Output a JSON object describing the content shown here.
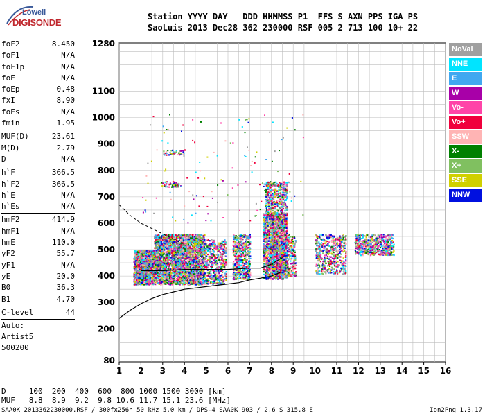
{
  "logo": {
    "line1": "Lowell",
    "line2": "DIGISONDE"
  },
  "header": {
    "row1": "Station YYYY DAY   DDD HHMMSS P1  FFS S AXN PPS IGA PS",
    "row2": "SaoLuis 2013 Dec28 362 230000 RSF 005 2 713 100 10+ 22"
  },
  "params": {
    "g1": [
      {
        "k": "foF2",
        "v": "8.450"
      },
      {
        "k": "foF1",
        "v": "N/A"
      },
      {
        "k": "foF1p",
        "v": "N/A"
      },
      {
        "k": "foE",
        "v": "N/A"
      },
      {
        "k": "foEp",
        "v": "0.48"
      },
      {
        "k": "fxI",
        "v": "8.90"
      },
      {
        "k": "foEs",
        "v": "N/A"
      },
      {
        "k": "fmin",
        "v": "1.95"
      }
    ],
    "g2": [
      {
        "k": "MUF(D)",
        "v": "23.61"
      },
      {
        "k": "M(D)",
        "v": "2.79"
      },
      {
        "k": "D",
        "v": "N/A"
      }
    ],
    "g3": [
      {
        "k": "h`F",
        "v": "366.5"
      },
      {
        "k": "h`F2",
        "v": "366.5"
      },
      {
        "k": "h`E",
        "v": "N/A"
      },
      {
        "k": "h`Es",
        "v": "N/A"
      }
    ],
    "g4": [
      {
        "k": "hmF2",
        "v": "414.9"
      },
      {
        "k": "hmF1",
        "v": "N/A"
      },
      {
        "k": "hmE",
        "v": "110.0"
      },
      {
        "k": "yF2",
        "v": "55.7"
      },
      {
        "k": "yF1",
        "v": "N/A"
      },
      {
        "k": "yE",
        "v": "20.0"
      },
      {
        "k": "B0",
        "v": "36.3"
      },
      {
        "k": "B1",
        "v": "4.70"
      }
    ],
    "g5": [
      {
        "k": "C-level",
        "v": "44"
      }
    ],
    "auto": [
      "Auto:",
      "Artist5",
      "500200"
    ]
  },
  "footer": {
    "d_row": "D     100  200  400  600  800 1000 1500 3000 [km]",
    "muf_row": "MUF   8.8  8.9  9.2  9.8 10.6 11.7 15.1 23.6 [MHz]",
    "bottom_left": "SAA0K_2013362230000.RSF / 300fx256h 50 kHz 5.0 km / DPS-4 SAA0K 903 / 2.6 S 315.8 E",
    "bottom_right": "Ion2Png 1.3.17"
  },
  "legend": [
    {
      "label": "NoVal",
      "color": "#a0a0a0"
    },
    {
      "label": "NNE",
      "color": "#00e4ff"
    },
    {
      "label": "E",
      "color": "#40a8f0"
    },
    {
      "label": "W",
      "color": "#a800a8"
    },
    {
      "label": "Vo-",
      "color": "#ff44a8"
    },
    {
      "label": "Vo+",
      "color": "#f0003c"
    },
    {
      "label": "SSW",
      "color": "#ffb4b4"
    },
    {
      "label": "X-",
      "color": "#008000"
    },
    {
      "label": "X+",
      "color": "#80c060"
    },
    {
      "label": "SSE",
      "color": "#d0d000"
    },
    {
      "label": "NNW",
      "color": "#0010e0"
    }
  ],
  "chart_data": {
    "type": "scatter",
    "xlim": [
      1,
      16
    ],
    "ylim": [
      80,
      1280
    ],
    "x_ticks": [
      1,
      2,
      3,
      4,
      5,
      6,
      7,
      8,
      9,
      10,
      11,
      12,
      13,
      14,
      15,
      16
    ],
    "y_tick_labels": [
      80,
      200,
      300,
      400,
      500,
      600,
      700,
      800,
      900,
      1000,
      1100,
      1280
    ],
    "grid": true,
    "clusters": [
      {
        "x": [
          1.65,
          2.6
        ],
        "y": [
          370,
          500
        ],
        "density": "high"
      },
      {
        "x": [
          2.6,
          3.8
        ],
        "y": [
          370,
          560
        ],
        "density": "high"
      },
      {
        "x": [
          3.8,
          4.9
        ],
        "y": [
          370,
          560
        ],
        "density": "high"
      },
      {
        "x": [
          4.9,
          5.9
        ],
        "y": [
          370,
          540
        ],
        "density": "medium"
      },
      {
        "x": [
          6.2,
          7.0
        ],
        "y": [
          390,
          560
        ],
        "density": "medium"
      },
      {
        "x": [
          7.6,
          8.7
        ],
        "y": [
          390,
          640
        ],
        "density": "high"
      },
      {
        "x": [
          8.0,
          9.1
        ],
        "y": [
          400,
          560
        ],
        "density": "medium"
      },
      {
        "x": [
          10.0,
          11.4
        ],
        "y": [
          410,
          560
        ],
        "density": "medium"
      },
      {
        "x": [
          11.8,
          13.6
        ],
        "y": [
          480,
          560
        ],
        "density": "medium"
      },
      {
        "x": [
          2.9,
          3.9
        ],
        "y": [
          740,
          760
        ],
        "density": "low"
      },
      {
        "x": [
          3.0,
          4.0
        ],
        "y": [
          860,
          880
        ],
        "density": "low"
      },
      {
        "x": [
          7.7,
          8.7
        ],
        "y": [
          600,
          760
        ],
        "density": "medium"
      }
    ],
    "profile_curve": {
      "x": [
        1,
        1.5,
        2,
        2.5,
        3,
        3.5,
        4,
        4.5,
        5,
        5.5,
        6,
        6.5,
        7,
        7.5,
        8,
        8.45
      ],
      "y": [
        240,
        270,
        295,
        315,
        330,
        340,
        350,
        355,
        360,
        365,
        370,
        375,
        385,
        392,
        400,
        415
      ]
    },
    "trace_virtual": {
      "x": [
        2,
        3,
        4,
        5,
        6,
        7,
        7.5,
        8,
        8.5
      ],
      "y": [
        420,
        420,
        425,
        425,
        425,
        430,
        430,
        445,
        470
      ]
    },
    "dashed_curve": {
      "x": [
        1,
        1.5,
        2,
        2.5,
        3,
        3.5,
        4
      ],
      "y": [
        670,
        630,
        600,
        580,
        560,
        540,
        520
      ]
    }
  }
}
